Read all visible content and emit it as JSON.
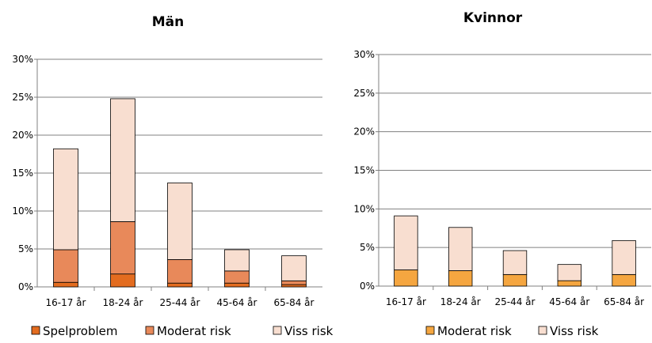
{
  "chart_data": [
    {
      "type": "bar",
      "stacked": true,
      "title": "Män",
      "xlabel": "",
      "ylabel": "",
      "categories": [
        "16-17 år",
        "18-24 år",
        "25-44 år",
        "45-64 år",
        "65-84 år"
      ],
      "yticks": [
        "0%",
        "5%",
        "10%",
        "15%",
        "20%",
        "25%",
        "30%"
      ],
      "ylim": [
        0,
        30
      ],
      "grid": true,
      "legend_position": "bottom",
      "series": [
        {
          "name": "Spelproblem",
          "color": "#E36C1F",
          "values": [
            0.6,
            1.7,
            0.5,
            0.5,
            0.3
          ]
        },
        {
          "name": "Moderat risk",
          "color": "#E8895A",
          "values": [
            4.3,
            6.9,
            3.1,
            1.6,
            0.5
          ]
        },
        {
          "name": "Viss risk",
          "color": "#F8DED0",
          "values": [
            13.3,
            16.2,
            10.1,
            2.8,
            3.3
          ]
        }
      ]
    },
    {
      "type": "bar",
      "stacked": true,
      "title": "Kvinnor",
      "xlabel": "",
      "ylabel": "",
      "categories": [
        "16-17 år",
        "18-24 år",
        "25-44 år",
        "45-64 år",
        "65-84 år"
      ],
      "yticks": [
        "0%",
        "5%",
        "10%",
        "15%",
        "20%",
        "25%",
        "30%"
      ],
      "ylim": [
        0,
        30
      ],
      "grid": true,
      "legend_position": "bottom",
      "series": [
        {
          "name": "Moderat risk",
          "color": "#F5A640",
          "values": [
            2.1,
            2.0,
            1.5,
            0.7,
            1.5
          ]
        },
        {
          "name": "Viss risk",
          "color": "#F8DED0",
          "values": [
            7.0,
            5.6,
            3.1,
            2.1,
            4.4
          ]
        }
      ]
    }
  ]
}
